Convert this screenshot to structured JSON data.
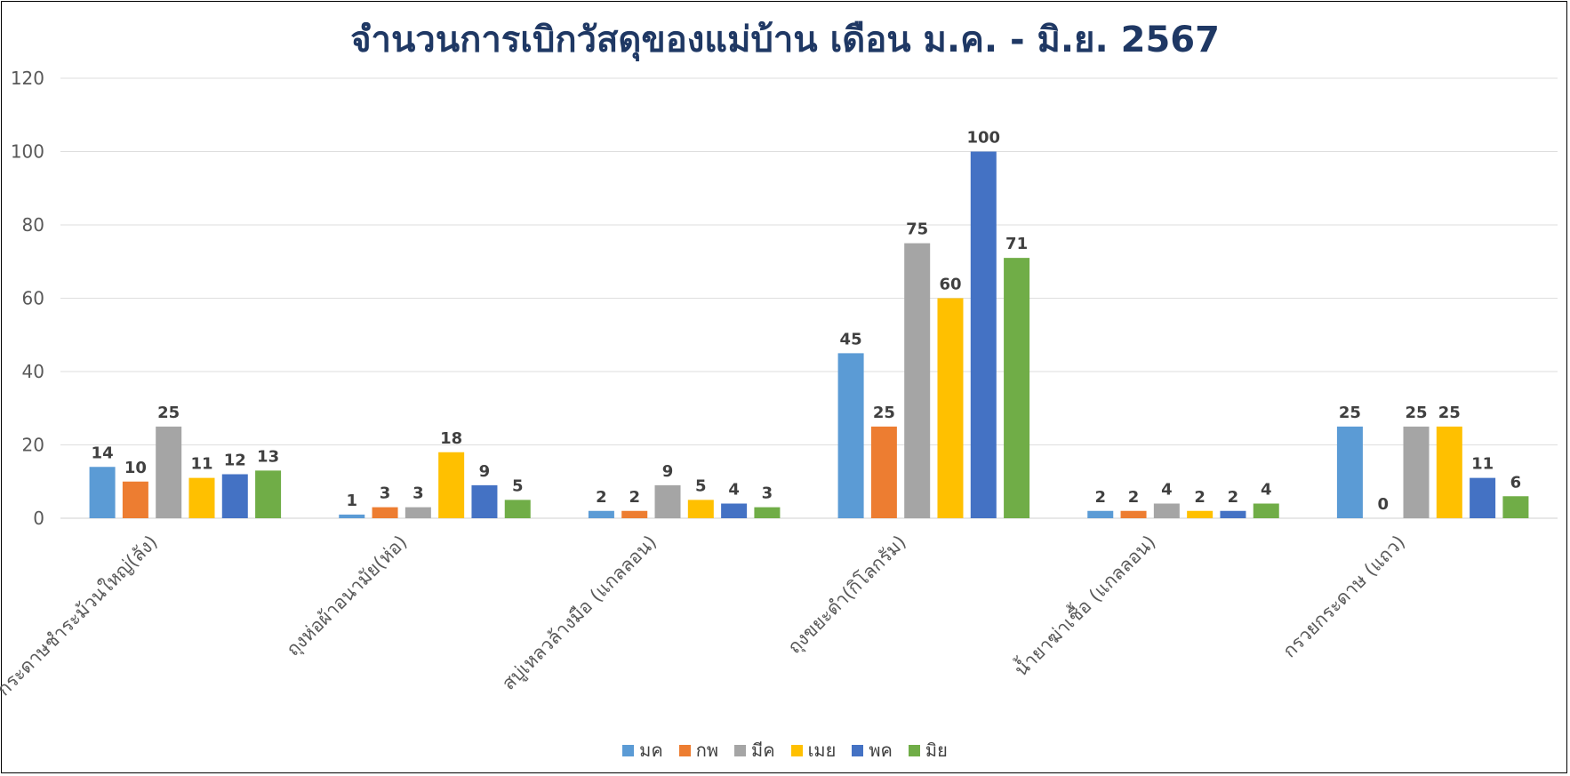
{
  "chart_data": {
    "type": "bar",
    "title": "จำนวนการเบิกวัสดุของแม่บ้าน เดือน ม.ค. - มิ.ย. 2567",
    "categories": [
      "กระดาษชำระม้วนใหญ่(ลัง)",
      "ถุงห่อผ้าอนามัย(ห่อ)",
      "สบู่เหลวล้างมือ (แกลลอน)",
      "ถุงขยะดำ(กิโลกรัม)",
      "น้ำยาฆ่าเชื้อ (แกลลอน)",
      "กรวยกระดาษ (แถว)"
    ],
    "series": [
      {
        "name": "มค",
        "color": "#5b9bd5",
        "values": [
          14,
          1,
          2,
          45,
          2,
          25
        ]
      },
      {
        "name": "กพ",
        "color": "#ed7d31",
        "values": [
          10,
          3,
          2,
          25,
          2,
          0
        ]
      },
      {
        "name": "มีค",
        "color": "#a5a5a5",
        "values": [
          25,
          3,
          9,
          75,
          4,
          25
        ]
      },
      {
        "name": "เมย",
        "color": "#ffc000",
        "values": [
          11,
          18,
          5,
          60,
          2,
          25
        ]
      },
      {
        "name": "พค",
        "color": "#4472c4",
        "values": [
          12,
          9,
          4,
          100,
          2,
          11
        ]
      },
      {
        "name": "มิย",
        "color": "#70ad47",
        "values": [
          13,
          5,
          3,
          71,
          4,
          6
        ]
      }
    ],
    "ylim": [
      0,
      120
    ],
    "yticks": [
      "0",
      "20",
      "40",
      "60",
      "80",
      "100",
      "120"
    ],
    "grid": true,
    "data_labels": true,
    "legend_position": "bottom"
  }
}
